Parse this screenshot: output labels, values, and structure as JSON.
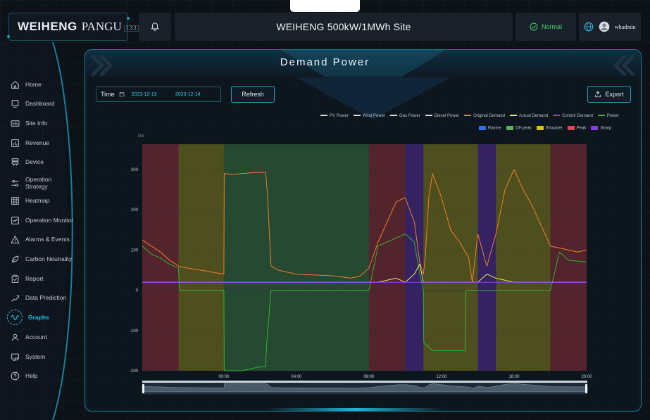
{
  "header": {
    "logo": "WEIHENG",
    "product": "PANGU",
    "version": "1.3.1",
    "site_title": "WEIHENG 500kW/1MWh Site",
    "status": "Normal",
    "username": "whadmin"
  },
  "sidebar": {
    "items": [
      {
        "label": "Home",
        "icon": "home-icon"
      },
      {
        "label": "Dashboard",
        "icon": "dashboard-icon"
      },
      {
        "label": "Site Info",
        "icon": "site-info-icon"
      },
      {
        "label": "Revenue",
        "icon": "revenue-icon"
      },
      {
        "label": "Device",
        "icon": "device-icon"
      },
      {
        "label": "Operation Strategy",
        "icon": "strategy-icon"
      },
      {
        "label": "Heatmap",
        "icon": "heatmap-icon"
      },
      {
        "label": "Operation Monitor",
        "icon": "monitor-icon"
      },
      {
        "label": "Alarms & Events",
        "icon": "alarm-icon"
      },
      {
        "label": "Carbon Neutrality",
        "icon": "leaf-icon"
      },
      {
        "label": "Report",
        "icon": "report-icon"
      },
      {
        "label": "Data Prediction",
        "icon": "prediction-icon"
      },
      {
        "label": "Graphs",
        "icon": "graphs-icon",
        "active": true
      },
      {
        "label": "Account",
        "icon": "account-icon"
      },
      {
        "label": "System",
        "icon": "system-icon"
      },
      {
        "label": "Help",
        "icon": "help-icon"
      }
    ]
  },
  "panel": {
    "title": "Demand Power",
    "time_label": "Time",
    "start_date": "2023-12-13",
    "date_separator": "-",
    "end_date": "2023-12-14",
    "refresh_label": "Refresh",
    "export_label": "Export"
  },
  "legend": {
    "series": [
      {
        "name": "PV Power",
        "color": "#d7dbe0"
      },
      {
        "name": "Wind Power",
        "color": "#d7dbe0"
      },
      {
        "name": "Gas Power",
        "color": "#d7dbe0"
      },
      {
        "name": "Diesel Power",
        "color": "#d7dbe0"
      },
      {
        "name": "Original Demand",
        "color": "#f07f22"
      },
      {
        "name": "Actual Demand",
        "color": "#e6ef5a"
      },
      {
        "name": "Control Demand",
        "color": "#9a3cf0"
      },
      {
        "name": "Power",
        "color": "#34b232"
      }
    ],
    "periods": [
      {
        "name": "Ravine",
        "color": "#2d73ea"
      },
      {
        "name": "Off-peak",
        "color": "#59b35c"
      },
      {
        "name": "Shoulder",
        "color": "#d6c420"
      },
      {
        "name": "Peak",
        "color": "#e5444f"
      },
      {
        "name": "Sharp",
        "color": "#8a3cf0"
      }
    ]
  },
  "chart_data": {
    "type": "line",
    "ylabel": "kW",
    "ylim": [
      -200,
      300
    ],
    "yticks": [
      300,
      200,
      100,
      0,
      -100,
      -200
    ],
    "xticks": [
      "00:00",
      "04:00",
      "08:00",
      "12:00",
      "16:00",
      "20:00"
    ],
    "x_unit": "hour",
    "xlim": [
      -4.5,
      20.0
    ],
    "periods": [
      {
        "type": "Peak",
        "start": -4.5,
        "end": -2.5
      },
      {
        "type": "Shoulder",
        "start": -2.5,
        "end": 0.0
      },
      {
        "type": "Off-peak",
        "start": 0.0,
        "end": 8.0
      },
      {
        "type": "Peak",
        "start": 8.0,
        "end": 10.0
      },
      {
        "type": "Sharp",
        "start": 10.0,
        "end": 11.0
      },
      {
        "type": "Shoulder",
        "start": 11.0,
        "end": 14.0
      },
      {
        "type": "Sharp",
        "start": 14.0,
        "end": 15.0
      },
      {
        "type": "Shoulder",
        "start": 15.0,
        "end": 18.0
      },
      {
        "type": "Peak",
        "start": 18.0,
        "end": 20.0
      }
    ],
    "series": [
      {
        "name": "Original Demand",
        "color": "#f07f22",
        "x": [
          -4.5,
          -4.0,
          -3.5,
          -3.0,
          -2.5,
          -2.0,
          -1.0,
          0.0,
          0.02,
          0.5,
          1.0,
          1.5,
          2.0,
          2.3,
          2.4,
          2.6,
          3.0,
          4.0,
          5.0,
          6.0,
          7.0,
          7.5,
          8.0,
          8.5,
          9.0,
          9.5,
          10.0,
          10.5,
          10.8,
          11.0,
          11.1,
          11.3,
          11.5,
          12.0,
          12.5,
          13.0,
          13.5,
          13.7,
          14.0,
          14.5,
          15.0,
          15.5,
          16.0,
          16.5,
          17.0,
          17.5,
          18.0,
          18.5,
          19.0,
          19.5,
          20.0
        ],
        "y": [
          125,
          110,
          95,
          75,
          60,
          55,
          48,
          40,
          290,
          288,
          290,
          292,
          293,
          293,
          240,
          60,
          50,
          40,
          38,
          36,
          30,
          35,
          55,
          120,
          170,
          220,
          230,
          170,
          70,
          40,
          80,
          230,
          290,
          230,
          150,
          120,
          80,
          20,
          140,
          60,
          140,
          250,
          300,
          250,
          210,
          160,
          110,
          105,
          100,
          95,
          100
        ]
      },
      {
        "name": "Power",
        "color": "#34b232",
        "x": [
          -4.5,
          -4.0,
          -3.5,
          -3.0,
          -2.5,
          -2.45,
          -1.0,
          0.0,
          0.02,
          1.0,
          2.0,
          2.3,
          2.35,
          2.6,
          4.0,
          6.0,
          7.5,
          8.0,
          8.5,
          9.0,
          9.5,
          10.0,
          10.5,
          10.8,
          11.0,
          11.02,
          11.5,
          12.0,
          13.0,
          13.3,
          13.35,
          14.0,
          15.0,
          16.0,
          17.0,
          18.0,
          18.5,
          19.0,
          20.0
        ],
        "y": [
          110,
          90,
          80,
          65,
          55,
          0,
          0,
          0,
          -200,
          -200,
          -190,
          -190,
          -140,
          0,
          0,
          0,
          0,
          0,
          110,
          120,
          130,
          140,
          120,
          40,
          0,
          -130,
          -150,
          -150,
          -150,
          -150,
          0,
          0,
          0,
          0,
          0,
          0,
          95,
          75,
          70
        ]
      },
      {
        "name": "Actual Demand",
        "color": "#e6ef5a",
        "x": [
          -4.5,
          -3.0,
          -2.5,
          -1.0,
          0.0,
          2.0,
          4.0,
          6.0,
          7.5,
          8.0,
          8.5,
          9.0,
          9.5,
          10.0,
          10.5,
          10.8,
          11.0,
          13.0,
          14.0,
          14.5,
          15.0,
          16.0,
          17.0,
          18.0,
          19.0,
          20.0
        ],
        "y": [
          20,
          20,
          20,
          20,
          20,
          20,
          20,
          20,
          20,
          20,
          20,
          25,
          30,
          20,
          40,
          65,
          20,
          20,
          20,
          40,
          30,
          20,
          20,
          20,
          20,
          20
        ]
      },
      {
        "name": "Control Demand",
        "color": "#9a3cf0",
        "x": [
          -4.5,
          20.0
        ],
        "y": [
          20,
          20
        ]
      }
    ]
  }
}
